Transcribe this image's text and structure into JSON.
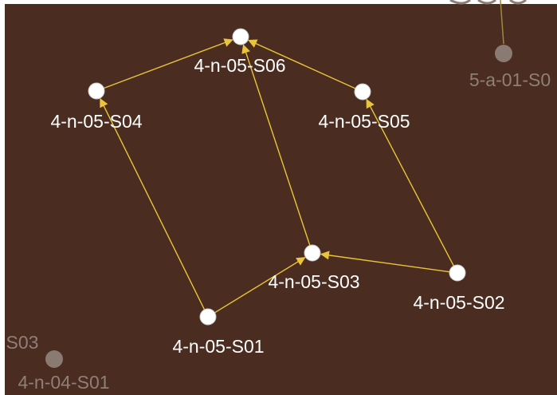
{
  "colors": {
    "background": "#4a2c20",
    "edge": "#e8c53a",
    "node_fill": "#ffffff",
    "node_stroke": "#c8c8c8",
    "label_text": "#ffffff",
    "faded": "#8a7a72",
    "faded_text": "#8e7f77",
    "faded_edge": "#a08a3c"
  },
  "graph": {
    "nodes": [
      {
        "id": "s06",
        "label": "4-n-05-S06"
      },
      {
        "id": "s04",
        "label": "4-n-05-S04"
      },
      {
        "id": "s05",
        "label": "4-n-05-S05"
      },
      {
        "id": "s03",
        "label": "4-n-05-S03"
      },
      {
        "id": "s02",
        "label": "4-n-05-S02"
      },
      {
        "id": "s01",
        "label": "4-n-05-S01"
      }
    ],
    "edges": [
      {
        "from": "s04",
        "to": "s06"
      },
      {
        "from": "s05",
        "to": "s06"
      },
      {
        "from": "s03",
        "to": "s06"
      },
      {
        "from": "s01",
        "to": "s04"
      },
      {
        "from": "s02",
        "to": "s05"
      },
      {
        "from": "s01",
        "to": "s03"
      },
      {
        "from": "s02",
        "to": "s03"
      }
    ]
  },
  "background_nodes": [
    {
      "id": "bg-5a01",
      "label": "5-a-01-S0"
    },
    {
      "id": "bg-4n04",
      "label": "4-n-04-S01"
    },
    {
      "id": "bg-s03",
      "label": "S03"
    }
  ]
}
